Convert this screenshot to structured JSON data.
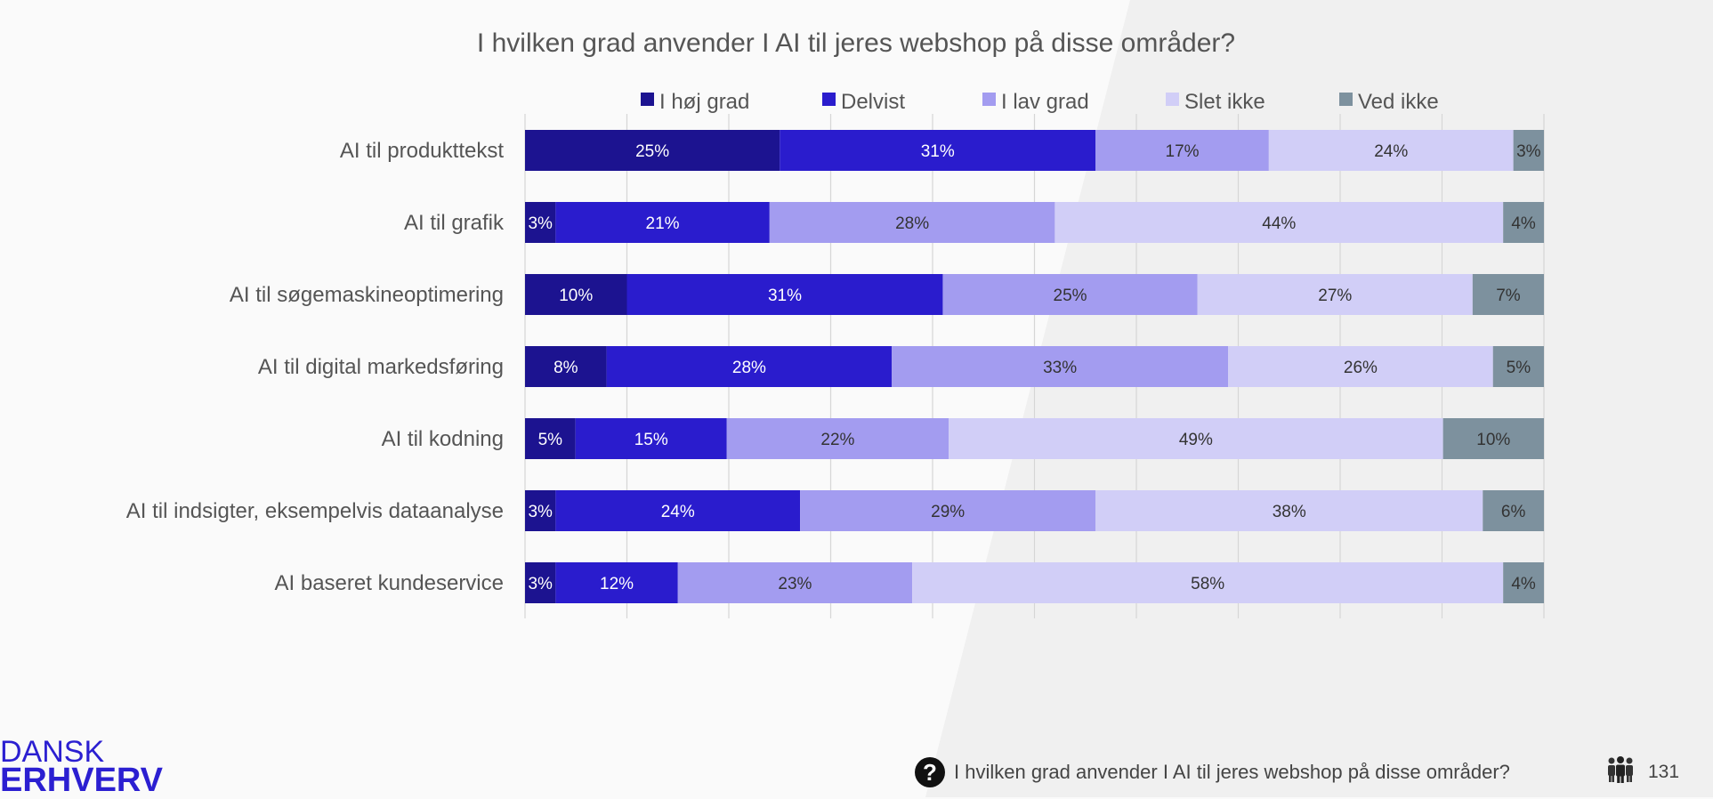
{
  "chart_data": {
    "type": "bar",
    "orientation": "horizontal",
    "stacked": true,
    "title": "I hvilken grad anvender I AI til jeres webshop på disse områder?",
    "categories": [
      "AI til produkttekst",
      "AI til grafik",
      "AI til søgemaskineoptimering",
      "AI til digital markedsføring",
      "AI til kodning",
      "AI til indsigter, eksempelvis dataanalyse",
      "AI baseret kundeservice"
    ],
    "series": [
      {
        "name": "I høj grad",
        "color": "#1c1390",
        "label_color": "#ffffff",
        "values": [
          25,
          3,
          10,
          8,
          5,
          3,
          3
        ]
      },
      {
        "name": "Delvist",
        "color": "#2a1ccd",
        "label_color": "#ffffff",
        "values": [
          31,
          21,
          31,
          28,
          15,
          24,
          12
        ]
      },
      {
        "name": "I lav grad",
        "color": "#a39cf0",
        "label_color": "#333333",
        "values": [
          17,
          28,
          25,
          33,
          22,
          29,
          23
        ]
      },
      {
        "name": "Slet ikke",
        "color": "#d1cef7",
        "label_color": "#333333",
        "values": [
          24,
          44,
          27,
          26,
          49,
          38,
          58
        ]
      },
      {
        "name": "Ved ikke",
        "color": "#7d919e",
        "label_color": "#333333",
        "values": [
          3,
          4,
          7,
          5,
          10,
          6,
          4
        ]
      }
    ],
    "xlim": [
      0,
      100
    ],
    "grid": true,
    "legend_position": "top",
    "value_suffix": "%"
  },
  "footer": {
    "logo_line1": "DANSK",
    "logo_line2": "ERHVERV",
    "question_icon": "question-circle-icon",
    "question_text": "I hvilken grad anvender I AI til jeres webshop på disse områder?",
    "respondents_icon": "people-icon",
    "respondents_count": "131"
  }
}
